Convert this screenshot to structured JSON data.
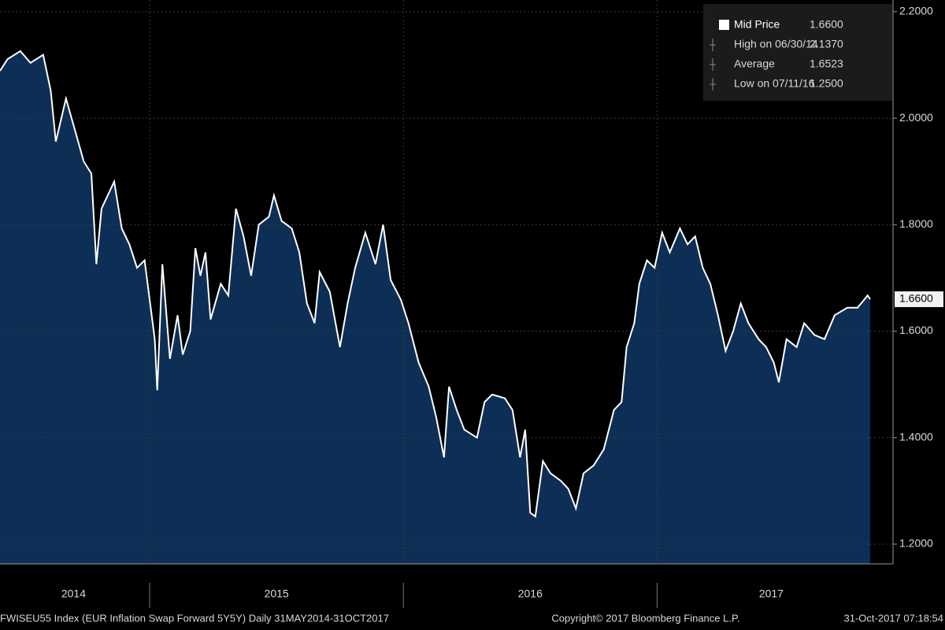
{
  "chart_data": {
    "type": "area",
    "x": [
      2014.41,
      2014.44,
      2014.49,
      2014.53,
      2014.58,
      2014.61,
      2014.63,
      2014.67,
      2014.71,
      2014.74,
      2014.77,
      2014.79,
      2014.81,
      2014.86,
      2014.89,
      2014.92,
      2014.95,
      2014.98,
      2015.02,
      2015.03,
      2015.05,
      2015.08,
      2015.11,
      2015.13,
      2015.16,
      2015.18,
      2015.2,
      2015.22,
      2015.24,
      2015.28,
      2015.31,
      2015.34,
      2015.37,
      2015.4,
      2015.43,
      2015.47,
      2015.49,
      2015.52,
      2015.56,
      2015.59,
      2015.62,
      2015.65,
      2015.67,
      2015.71,
      2015.75,
      2015.78,
      2015.81,
      2015.85,
      2015.89,
      2015.92,
      2015.95,
      2015.99,
      2016.02,
      2016.06,
      2016.1,
      2016.13,
      2016.16,
      2016.18,
      2016.21,
      2016.24,
      2016.29,
      2016.32,
      2016.35,
      2016.4,
      2016.43,
      2016.46,
      2016.48,
      2016.5,
      2016.52,
      2016.55,
      2016.58,
      2016.62,
      2016.65,
      2016.68,
      2016.71,
      2016.75,
      2016.79,
      2016.83,
      2016.86,
      2016.88,
      2016.91,
      2016.93,
      2016.96,
      2016.99,
      2017.02,
      2017.05,
      2017.09,
      2017.12,
      2017.15,
      2017.18,
      2017.21,
      2017.24,
      2017.27,
      2017.3,
      2017.33,
      2017.36,
      2017.4,
      2017.43,
      2017.46,
      2017.48,
      2017.51,
      2017.55,
      2017.58,
      2017.62,
      2017.66,
      2017.7,
      2017.75,
      2017.79,
      2017.83,
      2017.84
    ],
    "series": [
      {
        "name": "Mid Price",
        "last_label": "1.6600",
        "color": "#ffffff",
        "fill": "#0d2f55",
        "values": [
          2.089,
          2.111,
          2.126,
          2.104,
          2.119,
          2.052,
          1.956,
          2.037,
          1.97,
          1.919,
          1.896,
          1.726,
          1.83,
          1.881,
          1.793,
          1.763,
          1.719,
          1.733,
          1.585,
          1.489,
          1.726,
          1.548,
          1.63,
          1.556,
          1.6,
          1.756,
          1.704,
          1.748,
          1.622,
          1.689,
          1.667,
          1.83,
          1.778,
          1.704,
          1.8,
          1.815,
          1.855,
          1.807,
          1.793,
          1.748,
          1.652,
          1.615,
          1.711,
          1.674,
          1.57,
          1.652,
          1.719,
          1.785,
          1.726,
          1.8,
          1.696,
          1.659,
          1.615,
          1.541,
          1.496,
          1.437,
          1.363,
          1.496,
          1.452,
          1.415,
          1.4,
          1.467,
          1.481,
          1.474,
          1.452,
          1.363,
          1.415,
          1.259,
          1.252,
          1.356,
          1.333,
          1.319,
          1.304,
          1.267,
          1.333,
          1.348,
          1.378,
          1.452,
          1.467,
          1.57,
          1.615,
          1.689,
          1.733,
          1.719,
          1.785,
          1.748,
          1.793,
          1.763,
          1.778,
          1.719,
          1.689,
          1.63,
          1.563,
          1.6,
          1.652,
          1.615,
          1.585,
          1.57,
          1.541,
          1.504,
          1.585,
          1.57,
          1.615,
          1.593,
          1.585,
          1.63,
          1.644,
          1.644,
          1.667,
          1.66
        ]
      }
    ],
    "xlim": [
      2014.41,
      2017.93
    ],
    "xticks": [
      {
        "value": 2014.7,
        "label": "2014"
      },
      {
        "value": 2015.5,
        "label": "2015"
      },
      {
        "value": 2016.5,
        "label": "2016"
      },
      {
        "value": 2017.45,
        "label": "2017"
      }
    ],
    "year_dividers": [
      2015,
      2016,
      2017
    ],
    "ylim": [
      1.163,
      2.222
    ],
    "yticks": [
      {
        "value": 1.2,
        "label": "1.2000"
      },
      {
        "value": 1.4,
        "label": "1.4000"
      },
      {
        "value": 1.6,
        "label": "1.6000"
      },
      {
        "value": 1.8,
        "label": "1.8000"
      },
      {
        "value": 2.0,
        "label": "2.0000"
      },
      {
        "value": 2.2,
        "label": "2.2000"
      }
    ],
    "grid": true,
    "stats": [
      {
        "label": "High on 06/30/14",
        "value": "2.1370"
      },
      {
        "label": "Average",
        "value": "1.6523"
      },
      {
        "label": "Low on 07/11/16",
        "value": "1.2500"
      }
    ]
  },
  "footer": {
    "left": "FWISEU55 Index (EUR Inflation Swap Forward 5Y5Y) Daily 31MAY2014-31OCT2017",
    "center": "Copyright© 2017 Bloomberg Finance L.P.",
    "right": "31-Oct-2017 07:18:54"
  }
}
